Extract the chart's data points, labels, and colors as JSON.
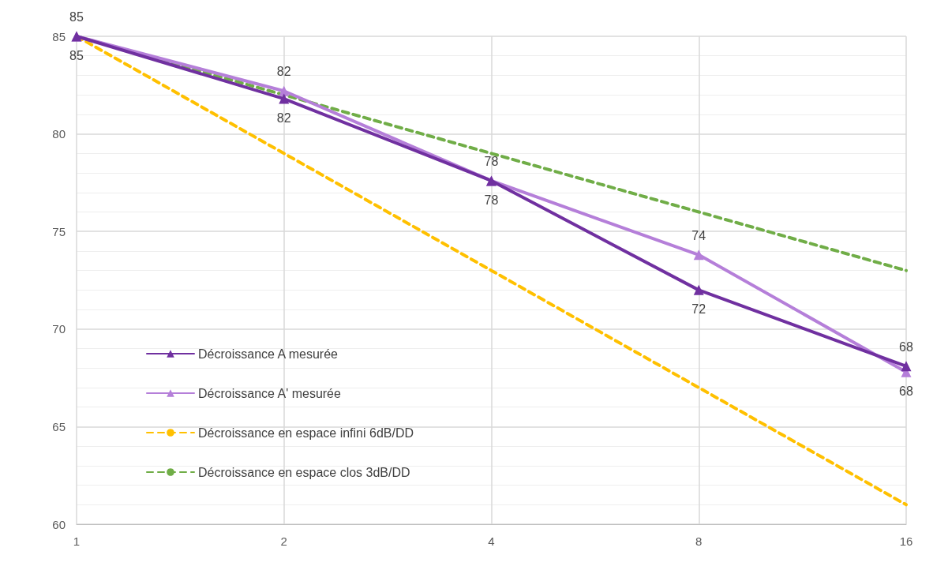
{
  "chart_data": {
    "type": "line",
    "x": [
      1,
      2,
      4,
      8,
      16
    ],
    "log": "x",
    "xlim": [
      1,
      16
    ],
    "xticks": [
      1,
      2,
      4,
      8,
      16
    ],
    "ylim": [
      60,
      85
    ],
    "yticks": [
      60,
      65,
      70,
      75,
      80,
      85
    ],
    "grid": true,
    "legend": "left",
    "series": [
      {
        "name": "Décroissance A mesurée",
        "color": "#7030a0",
        "values": [
          85,
          81.8,
          77.6,
          72.0,
          68.1
        ],
        "value_labels": [
          "85",
          "82",
          "78",
          "72",
          "68"
        ],
        "marker": "triangle",
        "line_style": "solid"
      },
      {
        "name": "Décroissance A' mesurée",
        "color": "#b57fd9",
        "values": [
          85,
          82.2,
          77.6,
          73.8,
          67.8
        ],
        "value_labels": [
          "85",
          "82",
          "78",
          "74",
          "68"
        ],
        "marker": "triangle",
        "line_style": "solid"
      },
      {
        "name": "Décroissance en espace infini 6dB/DD",
        "color": "#ffc000",
        "values": [
          85,
          79,
          73,
          67,
          61
        ],
        "marker": "none",
        "line_style": "dashed"
      },
      {
        "name": "Décroissance en espace clos 3dB/DD",
        "color": "#70ad47",
        "values": [
          85,
          82,
          79,
          76,
          73
        ],
        "marker": "none",
        "line_style": "dashed"
      }
    ]
  }
}
